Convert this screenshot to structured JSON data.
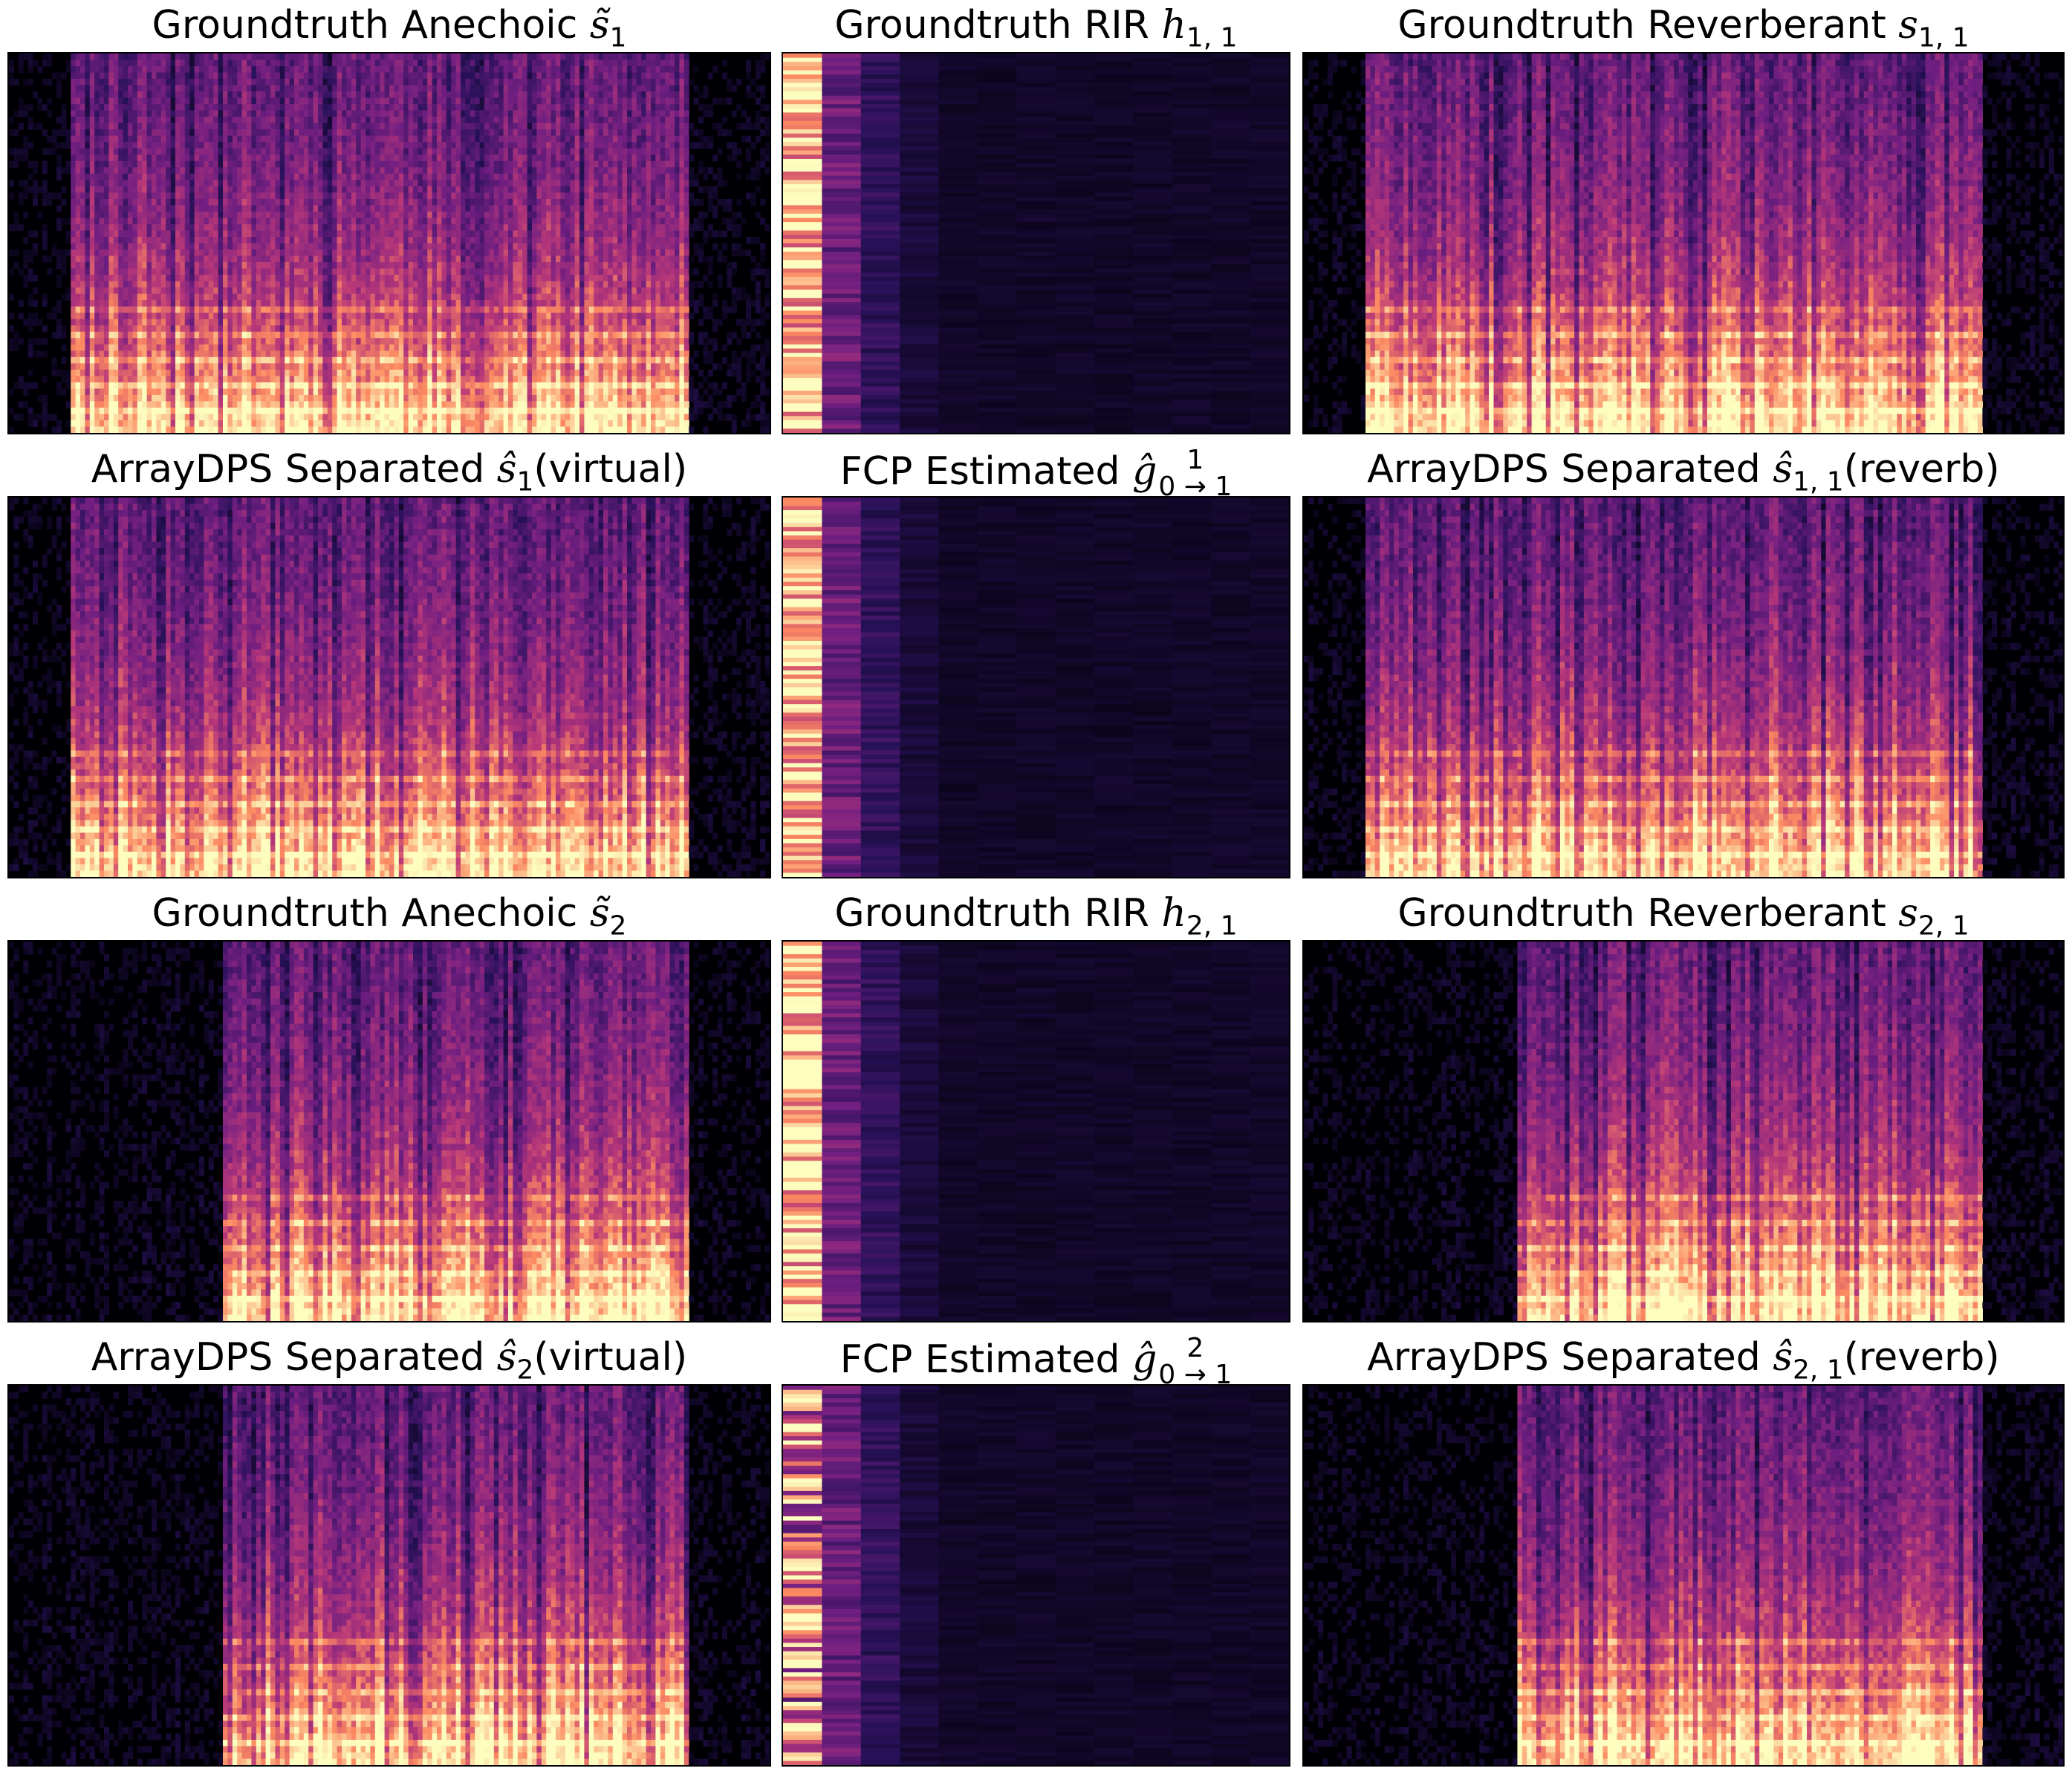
{
  "figure": {
    "columns": 3,
    "rows": 4,
    "colormap": "magma",
    "colors": {
      "background": "#000004",
      "low": "#3b0f70",
      "mid": "#b73779",
      "high": "#fc8961",
      "peak": "#fcfdbf"
    }
  },
  "panels": [
    {
      "row": 0,
      "col": 0,
      "kind": "speech",
      "title_text": "Groundtruth Anechoic ",
      "symbol": "s̃",
      "sub": "1",
      "sup": "",
      "suffix": ""
    },
    {
      "row": 0,
      "col": 1,
      "kind": "rir",
      "title_text": "Groundtruth RIR ",
      "symbol": "h",
      "sub": "1, 1",
      "sup": "",
      "suffix": ""
    },
    {
      "row": 0,
      "col": 2,
      "kind": "speech",
      "title_text": "Groundtruth Reverberant ",
      "symbol": "s",
      "sub": "1, 1",
      "sup": "",
      "suffix": ""
    },
    {
      "row": 1,
      "col": 0,
      "kind": "speech",
      "title_text": "ArrayDPS Separated ",
      "symbol": "ŝ",
      "sub": "1",
      "sup": "",
      "suffix": "(virtual)"
    },
    {
      "row": 1,
      "col": 1,
      "kind": "rir",
      "title_text": "FCP Estimated ",
      "symbol": "ĝ",
      "sub": "0 → 1",
      "sup": "1",
      "suffix": ""
    },
    {
      "row": 1,
      "col": 2,
      "kind": "speech",
      "title_text": "ArrayDPS Separated ",
      "symbol": "ŝ",
      "sub": "1, 1",
      "sup": "",
      "suffix": "(reverb)"
    },
    {
      "row": 2,
      "col": 0,
      "kind": "speech",
      "title_text": "Groundtruth Anechoic ",
      "symbol": "s̃",
      "sub": "2",
      "sup": "",
      "suffix": ""
    },
    {
      "row": 2,
      "col": 1,
      "kind": "rir",
      "title_text": "Groundtruth RIR ",
      "symbol": "h",
      "sub": "2, 1",
      "sup": "",
      "suffix": ""
    },
    {
      "row": 2,
      "col": 2,
      "kind": "speech",
      "title_text": "Groundtruth Reverberant ",
      "symbol": "s",
      "sub": "2, 1",
      "sup": "",
      "suffix": ""
    },
    {
      "row": 3,
      "col": 0,
      "kind": "speech",
      "title_text": "ArrayDPS Separated ",
      "symbol": "ŝ",
      "sub": "2",
      "sup": "",
      "suffix": "(virtual)"
    },
    {
      "row": 3,
      "col": 1,
      "kind": "rir",
      "title_text": "FCP Estimated ",
      "symbol": "ĝ",
      "sub": "0 → 1",
      "sup": "2",
      "suffix": ""
    },
    {
      "row": 3,
      "col": 2,
      "kind": "speech",
      "title_text": "ArrayDPS Separated ",
      "symbol": "ŝ",
      "sub": "2, 1",
      "sup": "",
      "suffix": "(reverb)"
    }
  ],
  "chart_data": {
    "type": "heatmap",
    "description_of_axes": "no axis labels or ticks shown",
    "grid": false,
    "legend": "none"
  }
}
